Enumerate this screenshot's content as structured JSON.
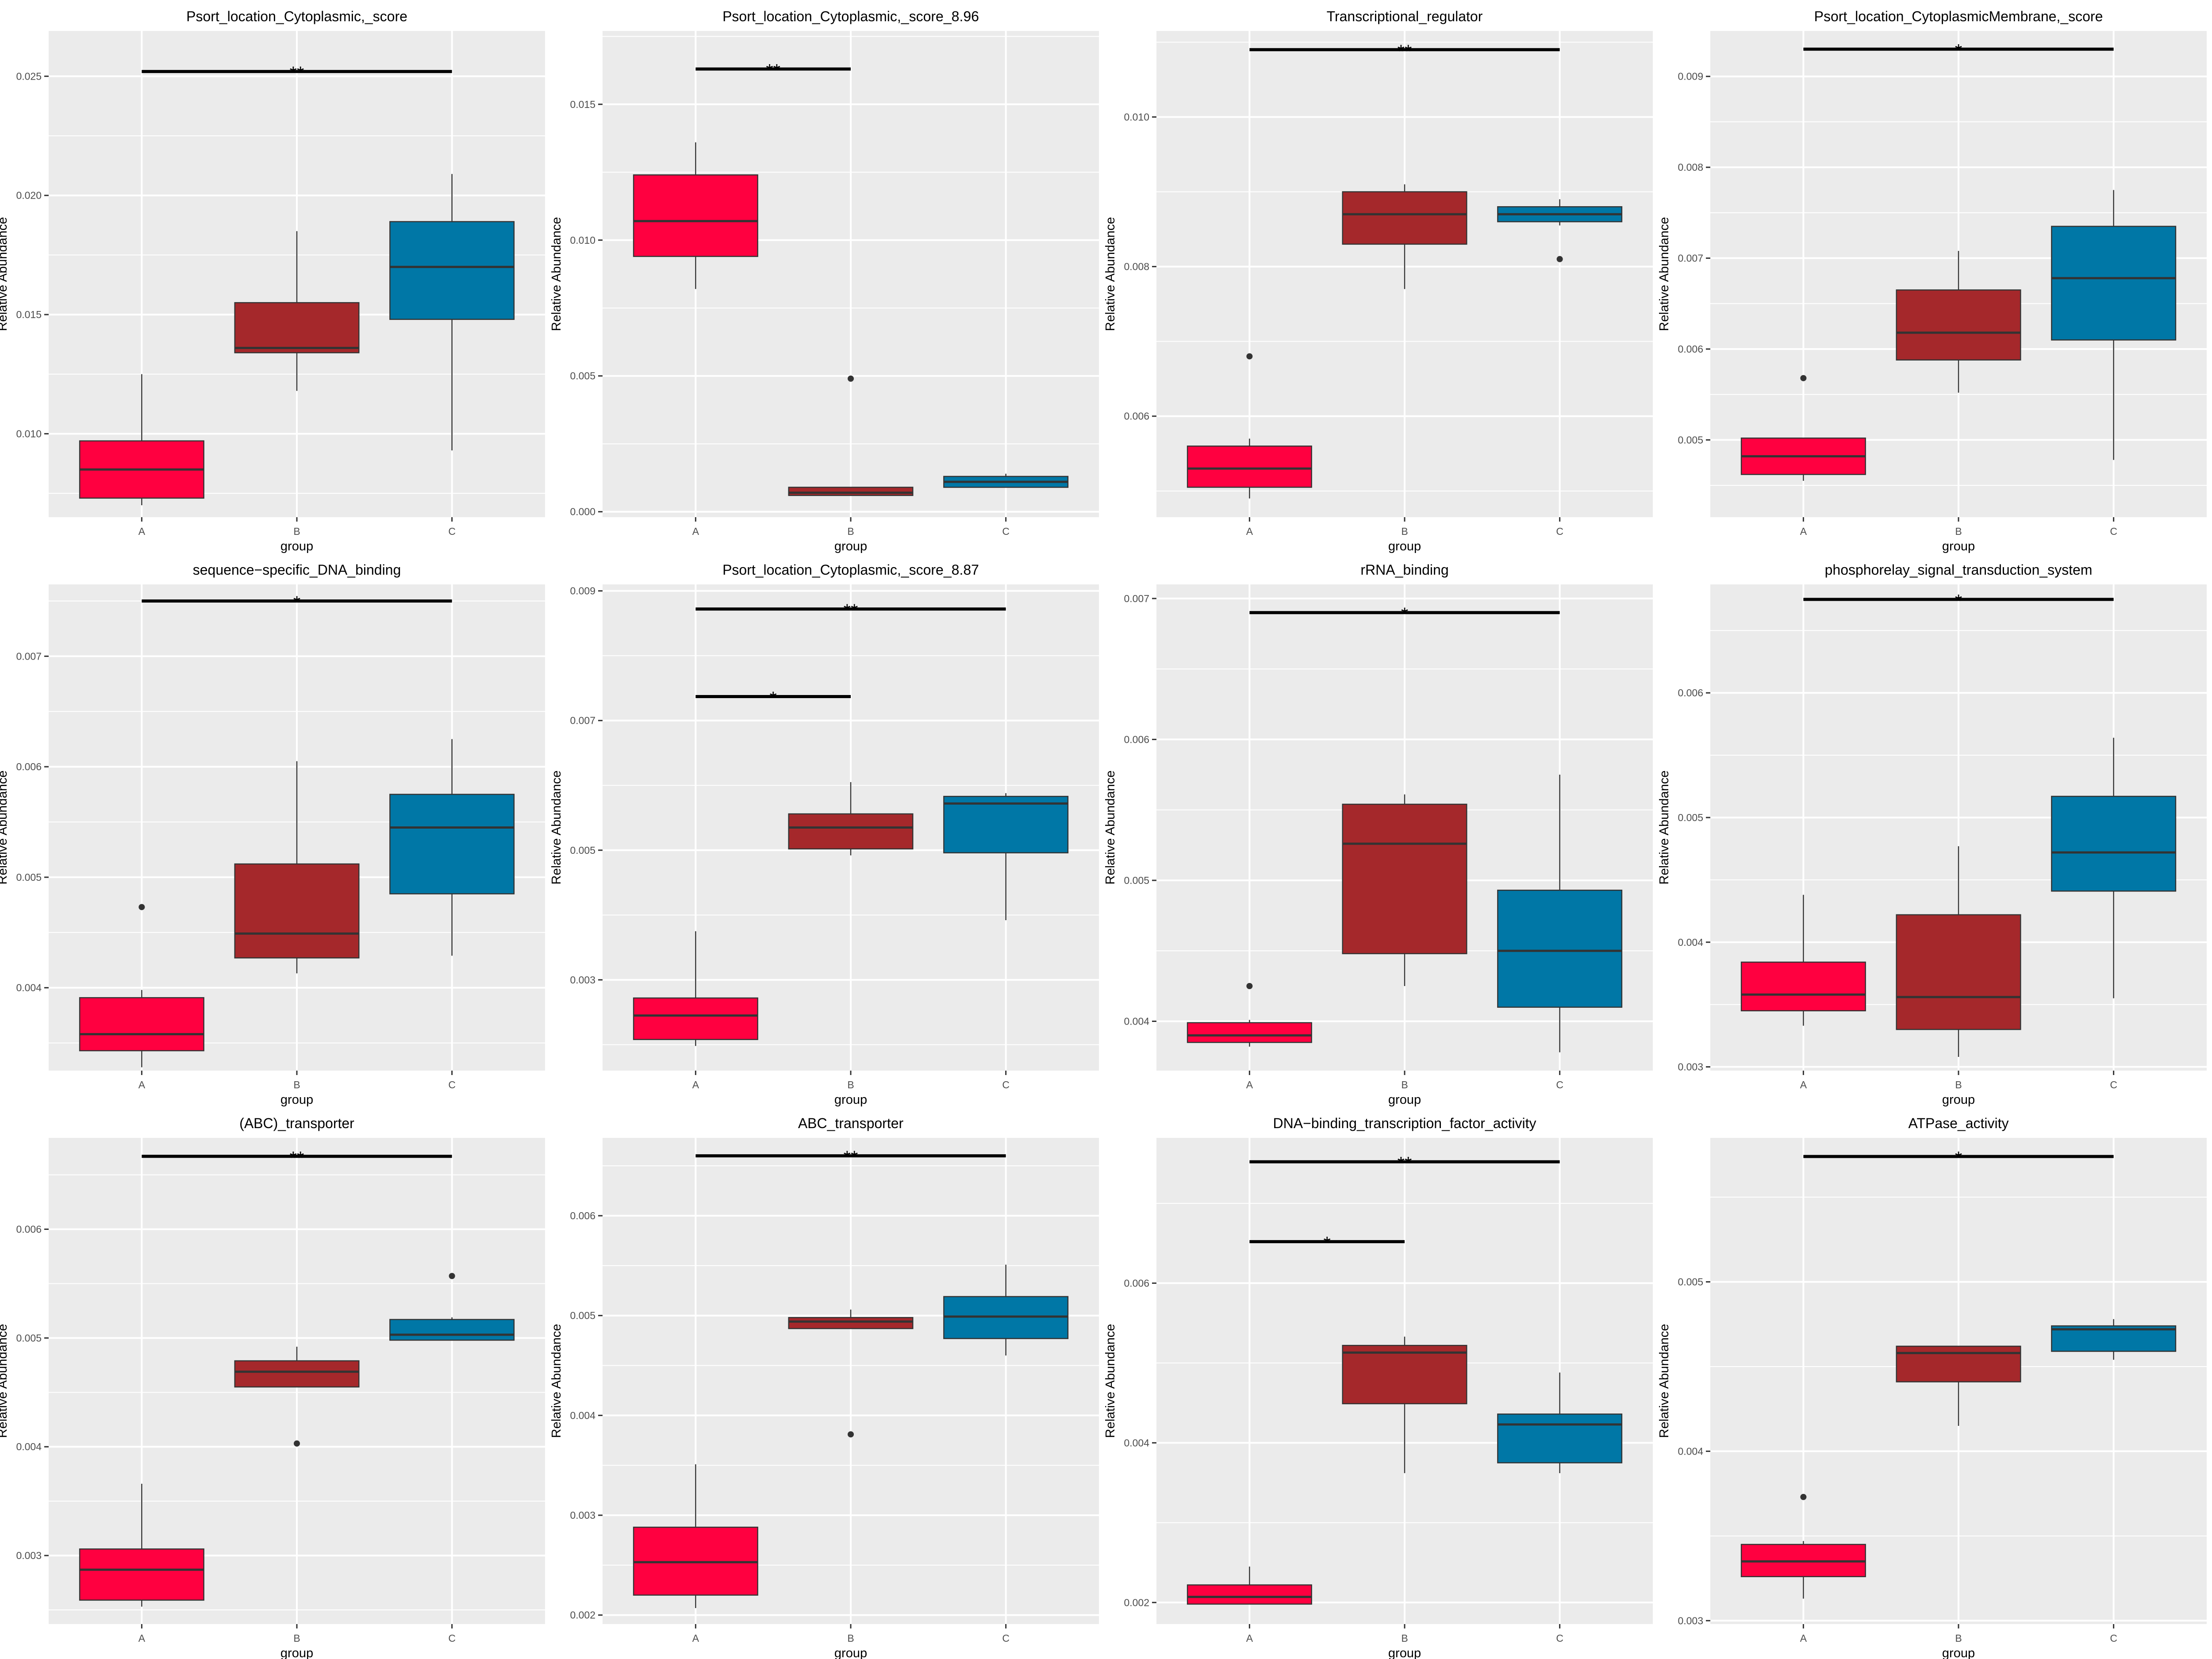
{
  "colors": {
    "A": "#FF0040",
    "B": "#A5282B",
    "C": "#0077A6",
    "panel_bg": "#EBEBEB",
    "grid": "#FFFFFF"
  },
  "chart_data": [
    {
      "type": "boxplot",
      "title": "Psort_location_Cytoplasmic,_score",
      "xlabel": "group",
      "ylabel": "Relative Abundance",
      "ylim": [
        0.0065,
        0.0269
      ],
      "yticks": [
        0.01,
        0.015,
        0.02,
        0.025
      ],
      "ytick_labels": [
        "0.010",
        "0.015",
        "0.020",
        "0.025"
      ],
      "grid": true,
      "categories": [
        "A",
        "B",
        "C"
      ],
      "boxes": [
        {
          "group": "A",
          "whislo": 0.007,
          "q1": 0.0073,
          "median": 0.0085,
          "q3": 0.0097,
          "whishi": 0.0125,
          "fliers": []
        },
        {
          "group": "B",
          "whislo": 0.0118,
          "q1": 0.0134,
          "median": 0.0136,
          "q3": 0.0155,
          "whishi": 0.0185,
          "fliers": []
        },
        {
          "group": "C",
          "whislo": 0.0093,
          "q1": 0.0148,
          "median": 0.017,
          "q3": 0.0189,
          "whishi": 0.0209,
          "fliers": []
        }
      ],
      "significance": [
        {
          "from": "A",
          "to": "C",
          "y": 0.0252,
          "label": "**"
        }
      ]
    },
    {
      "type": "boxplot",
      "title": "Psort_location_Cytoplasmic,_score_8.96",
      "xlabel": "group",
      "ylabel": "Relative Abundance",
      "ylim": [
        -0.0002,
        0.0177
      ],
      "yticks": [
        0.0,
        0.005,
        0.01,
        0.015
      ],
      "ytick_labels": [
        "0.000",
        "0.005",
        "0.010",
        "0.015"
      ],
      "grid": true,
      "categories": [
        "A",
        "B",
        "C"
      ],
      "boxes": [
        {
          "group": "A",
          "whislo": 0.0082,
          "q1": 0.0094,
          "median": 0.0107,
          "q3": 0.0124,
          "whishi": 0.0136,
          "fliers": []
        },
        {
          "group": "B",
          "whislo": 0.0006,
          "q1": 0.0006,
          "median": 0.0007,
          "q3": 0.0009,
          "whishi": 0.0009,
          "fliers": [
            0.0049
          ]
        },
        {
          "group": "C",
          "whislo": 0.0009,
          "q1": 0.0009,
          "median": 0.0011,
          "q3": 0.0013,
          "whishi": 0.0014,
          "fliers": []
        }
      ],
      "significance": [
        {
          "from": "A",
          "to": "B",
          "y": 0.0163,
          "label": "**"
        }
      ]
    },
    {
      "type": "boxplot",
      "title": "Transcriptional_regulator",
      "xlabel": "group",
      "ylabel": "Relative Abundance",
      "ylim": [
        0.00465,
        0.01115
      ],
      "yticks": [
        0.006,
        0.008,
        0.01
      ],
      "ytick_labels": [
        "0.006",
        "0.008",
        "0.010"
      ],
      "grid": true,
      "categories": [
        "A",
        "B",
        "C"
      ],
      "boxes": [
        {
          "group": "A",
          "whislo": 0.0049,
          "q1": 0.00505,
          "median": 0.0053,
          "q3": 0.0056,
          "whishi": 0.0057,
          "fliers": [
            0.0068
          ]
        },
        {
          "group": "B",
          "whislo": 0.0077,
          "q1": 0.0083,
          "median": 0.0087,
          "q3": 0.009,
          "whishi": 0.0091,
          "fliers": []
        },
        {
          "group": "C",
          "whislo": 0.00855,
          "q1": 0.0086,
          "median": 0.0087,
          "q3": 0.0088,
          "whishi": 0.0089,
          "fliers": [
            0.0081
          ]
        }
      ],
      "significance": [
        {
          "from": "A",
          "to": "C",
          "y": 0.0109,
          "label": "**"
        }
      ]
    },
    {
      "type": "boxplot",
      "title": "Psort_location_CytoplasmicMembrane,_score",
      "xlabel": "group",
      "ylabel": "Relative Abundance",
      "ylim": [
        0.00415,
        0.0095
      ],
      "yticks": [
        0.005,
        0.006,
        0.007,
        0.008,
        0.009
      ],
      "ytick_labels": [
        "0.005",
        "0.006",
        "0.007",
        "0.008",
        "0.009"
      ],
      "grid": true,
      "categories": [
        "A",
        "B",
        "C"
      ],
      "boxes": [
        {
          "group": "A",
          "whislo": 0.00455,
          "q1": 0.00462,
          "median": 0.00482,
          "q3": 0.00502,
          "whishi": 0.00502,
          "fliers": [
            0.00568
          ]
        },
        {
          "group": "B",
          "whislo": 0.00552,
          "q1": 0.00588,
          "median": 0.00618,
          "q3": 0.00665,
          "whishi": 0.00708,
          "fliers": []
        },
        {
          "group": "C",
          "whislo": 0.00478,
          "q1": 0.0061,
          "median": 0.00678,
          "q3": 0.00735,
          "whishi": 0.00775,
          "fliers": []
        }
      ],
      "significance": [
        {
          "from": "A",
          "to": "C",
          "y": 0.0093,
          "label": "*"
        }
      ]
    },
    {
      "type": "boxplot",
      "title": "sequence−specific_DNA_binding",
      "xlabel": "group",
      "ylabel": "Relative Abundance",
      "ylim": [
        0.00325,
        0.00765
      ],
      "yticks": [
        0.004,
        0.005,
        0.006,
        0.007
      ],
      "ytick_labels": [
        "0.004",
        "0.005",
        "0.006",
        "0.007"
      ],
      "grid": true,
      "categories": [
        "A",
        "B",
        "C"
      ],
      "boxes": [
        {
          "group": "A",
          "whislo": 0.00328,
          "q1": 0.00343,
          "median": 0.00358,
          "q3": 0.00391,
          "whishi": 0.00398,
          "fliers": [
            0.00473
          ]
        },
        {
          "group": "B",
          "whislo": 0.00413,
          "q1": 0.00427,
          "median": 0.00449,
          "q3": 0.00512,
          "whishi": 0.00605,
          "fliers": []
        },
        {
          "group": "C",
          "whislo": 0.00429,
          "q1": 0.00485,
          "median": 0.00545,
          "q3": 0.00575,
          "whishi": 0.00625,
          "fliers": []
        }
      ],
      "significance": [
        {
          "from": "A",
          "to": "C",
          "y": 0.0075,
          "label": "*"
        }
      ]
    },
    {
      "type": "boxplot",
      "title": "Psort_location_Cytoplasmic,_score_8.87",
      "xlabel": "group",
      "ylabel": "Relative Abundance",
      "ylim": [
        0.0016,
        0.0091
      ],
      "yticks": [
        0.003,
        0.005,
        0.007,
        0.009
      ],
      "ytick_labels": [
        "0.003",
        "0.005",
        "0.007",
        "0.009"
      ],
      "grid": true,
      "categories": [
        "A",
        "B",
        "C"
      ],
      "boxes": [
        {
          "group": "A",
          "whislo": 0.00198,
          "q1": 0.00208,
          "median": 0.00245,
          "q3": 0.00272,
          "whishi": 0.00375,
          "fliers": []
        },
        {
          "group": "B",
          "whislo": 0.00492,
          "q1": 0.00502,
          "median": 0.00535,
          "q3": 0.00556,
          "whishi": 0.00605,
          "fliers": []
        },
        {
          "group": "C",
          "whislo": 0.00392,
          "q1": 0.00496,
          "median": 0.00572,
          "q3": 0.00583,
          "whishi": 0.00588,
          "fliers": []
        }
      ],
      "significance": [
        {
          "from": "A",
          "to": "C",
          "y": 0.00872,
          "label": "**"
        },
        {
          "from": "A",
          "to": "B",
          "y": 0.00737,
          "label": "*"
        }
      ]
    },
    {
      "type": "boxplot",
      "title": "rRNA_binding",
      "xlabel": "group",
      "ylabel": "Relative Abundance",
      "ylim": [
        0.00365,
        0.0071
      ],
      "yticks": [
        0.004,
        0.005,
        0.006,
        0.007
      ],
      "ytick_labels": [
        "0.004",
        "0.005",
        "0.006",
        "0.007"
      ],
      "grid": true,
      "categories": [
        "A",
        "B",
        "C"
      ],
      "boxes": [
        {
          "group": "A",
          "whislo": 0.00382,
          "q1": 0.00385,
          "median": 0.0039,
          "q3": 0.00399,
          "whishi": 0.00401,
          "fliers": [
            0.00425
          ]
        },
        {
          "group": "B",
          "whislo": 0.00425,
          "q1": 0.00448,
          "median": 0.00526,
          "q3": 0.00554,
          "whishi": 0.00561,
          "fliers": []
        },
        {
          "group": "C",
          "whislo": 0.00378,
          "q1": 0.0041,
          "median": 0.0045,
          "q3": 0.00493,
          "whishi": 0.00575,
          "fliers": []
        }
      ],
      "significance": [
        {
          "from": "A",
          "to": "C",
          "y": 0.0069,
          "label": "*"
        }
      ]
    },
    {
      "type": "boxplot",
      "title": "phosphorelay_signal_transduction_system",
      "xlabel": "group",
      "ylabel": "Relative Abundance",
      "ylim": [
        0.00297,
        0.00687
      ],
      "yticks": [
        0.003,
        0.004,
        0.005,
        0.006
      ],
      "ytick_labels": [
        "0.003",
        "0.004",
        "0.005",
        "0.006"
      ],
      "grid": true,
      "categories": [
        "A",
        "B",
        "C"
      ],
      "boxes": [
        {
          "group": "A",
          "whislo": 0.00333,
          "q1": 0.00345,
          "median": 0.00358,
          "q3": 0.00384,
          "whishi": 0.00438,
          "fliers": []
        },
        {
          "group": "B",
          "whislo": 0.00308,
          "q1": 0.0033,
          "median": 0.00356,
          "q3": 0.00422,
          "whishi": 0.00477,
          "fliers": []
        },
        {
          "group": "C",
          "whislo": 0.00355,
          "q1": 0.00441,
          "median": 0.00472,
          "q3": 0.00517,
          "whishi": 0.00564,
          "fliers": []
        }
      ],
      "significance": [
        {
          "from": "A",
          "to": "C",
          "y": 0.00675,
          "label": "*"
        }
      ]
    },
    {
      "type": "boxplot",
      "title": "(ABC)_transporter",
      "xlabel": "group",
      "ylabel": "Relative Abundance",
      "ylim": [
        0.00237,
        0.00684
      ],
      "yticks": [
        0.003,
        0.004,
        0.005,
        0.006
      ],
      "ytick_labels": [
        "0.003",
        "0.004",
        "0.005",
        "0.006"
      ],
      "grid": true,
      "categories": [
        "A",
        "B",
        "C"
      ],
      "boxes": [
        {
          "group": "A",
          "whislo": 0.00253,
          "q1": 0.00259,
          "median": 0.00287,
          "q3": 0.00306,
          "whishi": 0.00366,
          "fliers": []
        },
        {
          "group": "B",
          "whislo": 0.00455,
          "q1": 0.00455,
          "median": 0.00469,
          "q3": 0.00479,
          "whishi": 0.00492,
          "fliers": [
            0.00403
          ]
        },
        {
          "group": "C",
          "whislo": 0.00498,
          "q1": 0.00498,
          "median": 0.00503,
          "q3": 0.00517,
          "whishi": 0.00519,
          "fliers": [
            0.00557
          ]
        }
      ],
      "significance": [
        {
          "from": "A",
          "to": "C",
          "y": 0.00667,
          "label": "**"
        }
      ]
    },
    {
      "type": "boxplot",
      "title": "ABC_transporter",
      "xlabel": "group",
      "ylabel": "Relative Abundance",
      "ylim": [
        0.00191,
        0.00678
      ],
      "yticks": [
        0.002,
        0.003,
        0.004,
        0.005,
        0.006
      ],
      "ytick_labels": [
        "0.002",
        "0.003",
        "0.004",
        "0.005",
        "0.006"
      ],
      "grid": true,
      "categories": [
        "A",
        "B",
        "C"
      ],
      "boxes": [
        {
          "group": "A",
          "whislo": 0.00207,
          "q1": 0.0022,
          "median": 0.00253,
          "q3": 0.00288,
          "whishi": 0.00351,
          "fliers": []
        },
        {
          "group": "B",
          "whislo": 0.00487,
          "q1": 0.00487,
          "median": 0.00494,
          "q3": 0.00498,
          "whishi": 0.00506,
          "fliers": [
            0.00381
          ]
        },
        {
          "group": "C",
          "whislo": 0.0046,
          "q1": 0.00477,
          "median": 0.00499,
          "q3": 0.00519,
          "whishi": 0.00551,
          "fliers": []
        }
      ],
      "significance": [
        {
          "from": "A",
          "to": "C",
          "y": 0.0066,
          "label": "**"
        }
      ]
    },
    {
      "type": "boxplot",
      "title": "DNA−binding_transcription_factor_activity",
      "xlabel": "group",
      "ylabel": "Relative Abundance",
      "ylim": [
        0.00173,
        0.00782
      ],
      "yticks": [
        0.002,
        0.004,
        0.006
      ],
      "ytick_labels": [
        "0.002",
        "0.004",
        "0.006"
      ],
      "grid": true,
      "categories": [
        "A",
        "B",
        "C"
      ],
      "boxes": [
        {
          "group": "A",
          "whislo": 0.00198,
          "q1": 0.00198,
          "median": 0.00207,
          "q3": 0.00222,
          "whishi": 0.00245,
          "fliers": []
        },
        {
          "group": "B",
          "whislo": 0.00362,
          "q1": 0.00449,
          "median": 0.00513,
          "q3": 0.00522,
          "whishi": 0.00533,
          "fliers": []
        },
        {
          "group": "C",
          "whislo": 0.00362,
          "q1": 0.00375,
          "median": 0.00423,
          "q3": 0.00436,
          "whishi": 0.00488,
          "fliers": []
        }
      ],
      "significance": [
        {
          "from": "A",
          "to": "C",
          "y": 0.00752,
          "label": "**"
        },
        {
          "from": "A",
          "to": "B",
          "y": 0.00652,
          "label": "*"
        }
      ]
    },
    {
      "type": "boxplot",
      "title": "ATPase_activity",
      "xlabel": "group",
      "ylabel": "Relative Abundance",
      "ylim": [
        0.00298,
        0.00585
      ],
      "yticks": [
        0.003,
        0.004,
        0.005
      ],
      "ytick_labels": [
        "0.003",
        "0.004",
        "0.005"
      ],
      "grid": true,
      "categories": [
        "A",
        "B",
        "C"
      ],
      "boxes": [
        {
          "group": "A",
          "whislo": 0.00313,
          "q1": 0.00326,
          "median": 0.00335,
          "q3": 0.00345,
          "whishi": 0.00347,
          "fliers": [
            0.00373
          ]
        },
        {
          "group": "B",
          "whislo": 0.00415,
          "q1": 0.00441,
          "median": 0.00458,
          "q3": 0.00462,
          "whishi": 0.00462,
          "fliers": []
        },
        {
          "group": "C",
          "whislo": 0.00454,
          "q1": 0.00459,
          "median": 0.00472,
          "q3": 0.00474,
          "whishi": 0.00478,
          "fliers": []
        }
      ],
      "significance": [
        {
          "from": "A",
          "to": "C",
          "y": 0.00574,
          "label": "*"
        }
      ]
    }
  ]
}
